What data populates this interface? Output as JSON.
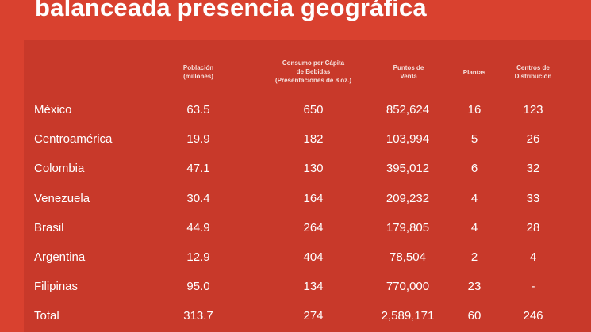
{
  "title": "balanceada presencia geográfica",
  "headers": {
    "poblacion": [
      "Población",
      "(millones)"
    ],
    "consumo": [
      "Consumo per Cápita",
      "de Bebidas",
      "(Presentaciones de 8 oz.)"
    ],
    "puntos": [
      "Puntos de",
      "Venta"
    ],
    "plantas": [
      "Plantas"
    ],
    "centros": [
      "Centros de",
      "Distribución"
    ]
  },
  "rows": [
    {
      "country": "México",
      "poblacion": "63.5",
      "consumo": "650",
      "puntos": "852,624",
      "plantas": "16",
      "centros": "123"
    },
    {
      "country": "Centroamérica",
      "poblacion": "19.9",
      "consumo": "182",
      "puntos": "103,994",
      "plantas": "5",
      "centros": "26"
    },
    {
      "country": "Colombia",
      "poblacion": "47.1",
      "consumo": "130",
      "puntos": "395,012",
      "plantas": "6",
      "centros": "32"
    },
    {
      "country": "Venezuela",
      "poblacion": "30.4",
      "consumo": "164",
      "puntos": "209,232",
      "plantas": "4",
      "centros": "33"
    },
    {
      "country": "Brasil",
      "poblacion": "44.9",
      "consumo": "264",
      "puntos": "179,805",
      "plantas": "4",
      "centros": "28"
    },
    {
      "country": "Argentina",
      "poblacion": "12.9",
      "consumo": "404",
      "puntos": "78,504",
      "plantas": "2",
      "centros": "4"
    },
    {
      "country": "Filipinas",
      "poblacion": "95.0",
      "consumo": "134",
      "puntos": "770,000",
      "plantas": "23",
      "centros": "-"
    },
    {
      "country": "Total",
      "poblacion": "313.7",
      "consumo": "274",
      "puntos": "2,589,171",
      "plantas": "60",
      "centros": "246"
    }
  ]
}
